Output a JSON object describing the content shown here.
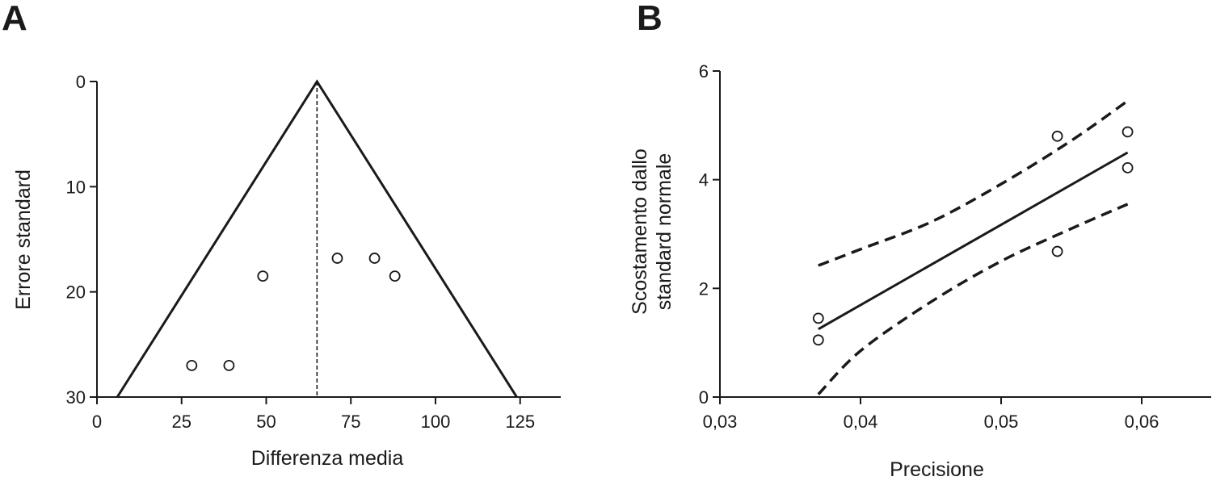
{
  "chart_data": [
    {
      "panel": "A",
      "type": "scatter",
      "title": "",
      "xlabel": "Differenza media",
      "ylabel": "Errore standard",
      "xlim": [
        0,
        137
      ],
      "ylim": [
        0,
        30
      ],
      "y_inverted": true,
      "xticks": [
        0,
        25,
        50,
        75,
        100,
        125
      ],
      "yticks": [
        0,
        10,
        20,
        30
      ],
      "xtick_labels": [
        "0",
        "25",
        "50",
        "75",
        "100",
        "125"
      ],
      "ytick_labels": [
        "0",
        "10",
        "20",
        "30"
      ],
      "grid": false,
      "legend": "none",
      "points": [
        {
          "x": 28,
          "y": 27
        },
        {
          "x": 39,
          "y": 27
        },
        {
          "x": 49,
          "y": 18.5
        },
        {
          "x": 71,
          "y": 16.8
        },
        {
          "x": 82,
          "y": 16.8
        },
        {
          "x": 88,
          "y": 18.5
        }
      ],
      "funnel": {
        "apex_x": 65,
        "apex_y": 0,
        "left_base_x": 6,
        "right_base_x": 124,
        "base_y": 30
      },
      "reference_line": {
        "x": 65,
        "style": "dashed"
      }
    },
    {
      "panel": "B",
      "type": "scatter",
      "title": "",
      "xlabel": "Precisione",
      "ylabel_lines": [
        "Scostamento dallo",
        "standard normale"
      ],
      "xlim": [
        0.03,
        0.065
      ],
      "ylim": [
        0,
        6
      ],
      "xticks": [
        0.03,
        0.04,
        0.05,
        0.06
      ],
      "yticks": [
        0,
        2,
        4,
        6
      ],
      "xtick_labels": [
        "0,03",
        "0,04",
        "0,05",
        "0,06"
      ],
      "ytick_labels": [
        "0",
        "2",
        "4",
        "6"
      ],
      "grid": false,
      "legend": "none",
      "points": [
        {
          "x": 0.037,
          "y": 1.45
        },
        {
          "x": 0.037,
          "y": 1.05
        },
        {
          "x": 0.054,
          "y": 4.8
        },
        {
          "x": 0.054,
          "y": 2.68
        },
        {
          "x": 0.059,
          "y": 4.88
        },
        {
          "x": 0.059,
          "y": 4.22
        }
      ],
      "regression_line": [
        [
          0.037,
          1.25
        ],
        [
          0.059,
          4.5
        ]
      ],
      "confidence_upper": [
        [
          0.037,
          2.42
        ],
        [
          0.04,
          2.72
        ],
        [
          0.045,
          3.22
        ],
        [
          0.05,
          3.92
        ],
        [
          0.055,
          4.72
        ],
        [
          0.059,
          5.45
        ]
      ],
      "confidence_lower": [
        [
          0.037,
          0.05
        ],
        [
          0.04,
          0.85
        ],
        [
          0.045,
          1.75
        ],
        [
          0.05,
          2.5
        ],
        [
          0.055,
          3.1
        ],
        [
          0.059,
          3.55
        ]
      ]
    }
  ],
  "panels": {
    "a_label": "A",
    "b_label": "B"
  }
}
